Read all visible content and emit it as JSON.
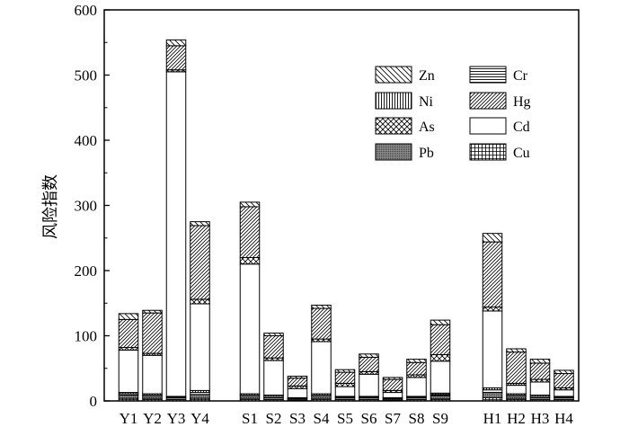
{
  "chart_data": {
    "type": "bar",
    "stacked": true,
    "ylabel": "风险指数",
    "xlabel": "",
    "ylim": [
      0,
      600
    ],
    "yticks": [
      0,
      100,
      200,
      300,
      400,
      500,
      600
    ],
    "grid": false,
    "legend_position": "top-right",
    "categories": [
      "Y1",
      "Y2",
      "Y3",
      "Y4",
      "S1",
      "S2",
      "S3",
      "S4",
      "S5",
      "S6",
      "S7",
      "S8",
      "S9",
      "H1",
      "H2",
      "H3",
      "H4"
    ],
    "groups": [
      [
        "Y1",
        "Y2",
        "Y3",
        "Y4"
      ],
      [
        "S1",
        "S2",
        "S3",
        "S4",
        "S5",
        "S6",
        "S7",
        "S8",
        "S9"
      ],
      [
        "H1",
        "H2",
        "H3",
        "H4"
      ]
    ],
    "stack_order": [
      "Cu",
      "Pb",
      "Cr",
      "Ni",
      "Cd",
      "As",
      "Hg",
      "Zn"
    ],
    "legend_order": [
      "Zn",
      "Cr",
      "Ni",
      "Hg",
      "As",
      "Cd",
      "Pb",
      "Cu"
    ],
    "series": [
      {
        "name": "Cu",
        "pattern": "grid",
        "values": [
          4,
          3,
          2,
          4,
          3,
          2,
          1,
          3,
          2,
          2,
          1,
          2,
          3,
          5,
          3,
          2,
          2
        ]
      },
      {
        "name": "Pb",
        "pattern": "dense-dots",
        "values": [
          5,
          4,
          3,
          6,
          4,
          3,
          2,
          4,
          3,
          3,
          2,
          3,
          5,
          8,
          4,
          3,
          3
        ]
      },
      {
        "name": "Cr",
        "pattern": "horizontal",
        "values": [
          2,
          2,
          1,
          3,
          2,
          2,
          1,
          2,
          1,
          1,
          1,
          1,
          2,
          4,
          2,
          2,
          1
        ]
      },
      {
        "name": "Ni",
        "pattern": "vertical",
        "values": [
          2,
          2,
          1,
          3,
          2,
          2,
          1,
          2,
          1,
          1,
          1,
          1,
          2,
          3,
          2,
          2,
          1
        ]
      },
      {
        "name": "Cd",
        "pattern": "white",
        "values": [
          65,
          59,
          498,
          133,
          199,
          53,
          14,
          80,
          15,
          34,
          8,
          29,
          49,
          118,
          13,
          20,
          10
        ]
      },
      {
        "name": "As",
        "pattern": "crosshatch",
        "values": [
          4,
          3,
          3,
          7,
          10,
          4,
          4,
          4,
          5,
          4,
          3,
          4,
          10,
          6,
          3,
          4,
          3
        ]
      },
      {
        "name": "Hg",
        "pattern": "dense-diag",
        "values": [
          43,
          62,
          37,
          113,
          78,
          34,
          12,
          47,
          17,
          22,
          17,
          19,
          46,
          100,
          48,
          25,
          22
        ]
      },
      {
        "name": "Zn",
        "pattern": "back-diag",
        "values": [
          9,
          4,
          9,
          6,
          7,
          4,
          3,
          5,
          4,
          5,
          3,
          5,
          7,
          13,
          5,
          6,
          5
        ]
      }
    ]
  }
}
